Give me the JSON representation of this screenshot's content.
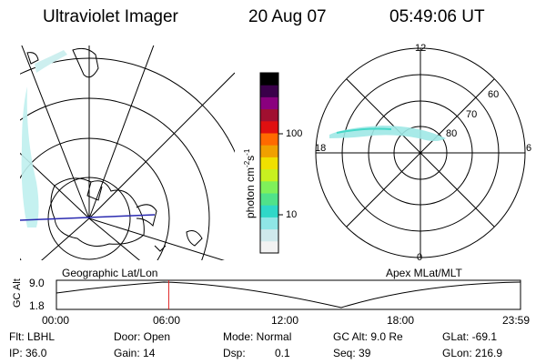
{
  "header": {
    "instrument": "Ultraviolet Imager",
    "date": "20 Aug 07",
    "time": "05:49:06 UT"
  },
  "colorbar": {
    "unit_label": "photon cm",
    "unit_exp1": "-2",
    "unit_s": "s",
    "unit_exp2": "-1",
    "tick_100": "100",
    "tick_10": "10",
    "colors": [
      "#f2f2f2",
      "#cfe9ec",
      "#8fe6e6",
      "#2fd8c8",
      "#50e28a",
      "#7ff05a",
      "#c8f020",
      "#f0e000",
      "#f0a000",
      "#ff6a00",
      "#e01010",
      "#a01030",
      "#8a007e",
      "#3a004a",
      "#000000"
    ]
  },
  "left_map": {
    "caption": "Geographic Lat/Lon"
  },
  "right_map": {
    "caption": "Apex  MLat/MLT",
    "mlt_top": "12",
    "mlt_right": "6",
    "mlt_bottom": "0",
    "mlt_left": "18",
    "lat_60": "60",
    "lat_70": "70",
    "lat_80": "80"
  },
  "orbit_plot": {
    "ylabel": "GC Alt",
    "y_top": "9.0",
    "y_bottom": "1.8",
    "x_ticks": [
      "00:00",
      "06:00",
      "12:00",
      "18:00",
      "23:59"
    ],
    "current_fraction": 0.242
  },
  "status": {
    "flt_label": "Flt: LBHL",
    "ip_label": "IP: 36.0",
    "door_label": "Door: Open",
    "gain_label": "Gain: 14",
    "mode_label": "Mode: Normal",
    "dsp_label": "Dsp:",
    "dsp_value": "0.1",
    "gcalt_label": "GC Alt: 9.0 Re",
    "seq_label": "Seq: 39",
    "glat_label": "GLat: -69.1",
    "glon_label": "GLon: 216.9"
  }
}
